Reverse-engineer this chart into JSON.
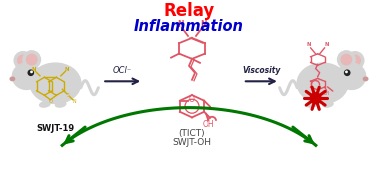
{
  "title_relay": "Relay",
  "title_inflammation": "Inflammation",
  "relay_color": "#ff0000",
  "inflammation_color": "#0000cc",
  "arrow_color": "#007700",
  "label_oci": "OCl⁻",
  "label_viscosity": "Viscosity",
  "label_swjt19": "SWJT-19",
  "label_tict": "(TICT)",
  "label_swjtoh": "SWJT-OH",
  "reaction_arrow_color": "#222244",
  "molecule_color": "#e05565",
  "molecule_yellow": "#ccaa00",
  "bg_color": "#ffffff",
  "mouse_body_color": "#d4d4d4",
  "mouse_ear_inner_color": "#e8b8b8",
  "inflammation_spot_color": "#cc0000",
  "mouse_eye_color": "#222222",
  "mouse_nose_color": "#cc9999"
}
